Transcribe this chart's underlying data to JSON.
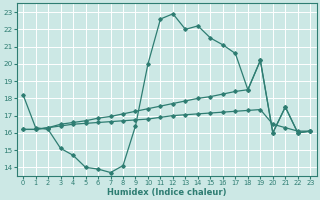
{
  "xlabel": "Humidex (Indice chaleur)",
  "bg_color": "#cce8e5",
  "grid_color": "#ffffff",
  "line_color": "#2e7d72",
  "xlim": [
    -0.5,
    23.5
  ],
  "ylim": [
    13.5,
    23.5
  ],
  "xticks": [
    0,
    1,
    2,
    3,
    4,
    5,
    6,
    7,
    8,
    9,
    10,
    11,
    12,
    13,
    14,
    15,
    16,
    17,
    18,
    19,
    20,
    21,
    22,
    23
  ],
  "yticks": [
    14,
    15,
    16,
    17,
    18,
    19,
    20,
    21,
    22,
    23
  ],
  "line1_x": [
    0,
    1,
    2,
    3,
    4,
    5,
    6,
    7,
    8,
    9,
    10,
    11,
    12,
    13,
    14,
    15,
    16,
    17,
    18,
    19,
    20,
    21,
    22,
    23
  ],
  "line1_y": [
    18.2,
    16.3,
    16.2,
    15.1,
    14.7,
    14.0,
    13.9,
    13.7,
    14.1,
    16.4,
    20.0,
    22.6,
    22.9,
    22.0,
    22.2,
    21.5,
    21.1,
    20.6,
    18.5,
    20.2,
    16.0,
    17.5,
    16.0,
    16.1
  ],
  "line2_x": [
    0,
    1,
    2,
    3,
    4,
    5,
    6,
    7,
    8,
    9,
    10,
    11,
    12,
    13,
    14,
    15,
    16,
    17,
    18,
    19,
    20,
    21,
    22,
    23
  ],
  "line2_y": [
    16.2,
    16.2,
    16.3,
    16.5,
    16.6,
    16.7,
    16.85,
    16.95,
    17.1,
    17.25,
    17.4,
    17.55,
    17.7,
    17.85,
    18.0,
    18.1,
    18.25,
    18.4,
    18.5,
    20.2,
    16.0,
    17.5,
    16.0,
    16.1
  ],
  "line3_x": [
    0,
    1,
    2,
    3,
    4,
    5,
    6,
    7,
    8,
    9,
    10,
    11,
    12,
    13,
    14,
    15,
    16,
    17,
    18,
    19,
    20,
    21,
    22,
    23
  ],
  "line3_y": [
    16.2,
    16.2,
    16.3,
    16.4,
    16.5,
    16.55,
    16.6,
    16.65,
    16.7,
    16.75,
    16.8,
    16.9,
    17.0,
    17.05,
    17.1,
    17.15,
    17.2,
    17.25,
    17.3,
    17.35,
    16.5,
    16.3,
    16.1,
    16.1
  ]
}
